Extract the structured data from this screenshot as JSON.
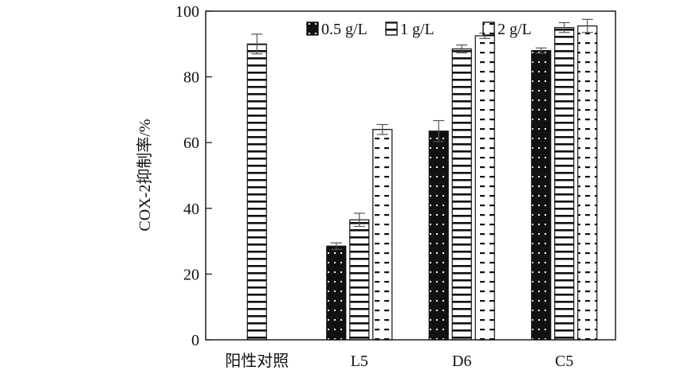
{
  "chart_data": {
    "type": "bar",
    "categories": [
      "阳性对照",
      "L5",
      "D6",
      "C5"
    ],
    "ylabel": "COX-2抑制率/%",
    "ylim": [
      0,
      100
    ],
    "yticks": [
      0,
      20,
      40,
      60,
      80,
      100
    ],
    "grid": false,
    "legend_position": "top",
    "series": [
      {
        "name": "0.5 g/L",
        "pattern": "dots-on-black",
        "values": [
          null,
          28.5,
          63.5,
          88.0
        ],
        "errors": [
          null,
          1.0,
          3.2,
          0.8
        ]
      },
      {
        "name": "1 g/L",
        "pattern": "horizontal-stripes",
        "values": [
          90.0,
          36.5,
          88.5,
          95.0
        ],
        "errors": [
          3.0,
          2.0,
          1.2,
          1.5
        ]
      },
      {
        "name": "2 g/L",
        "pattern": "dashes",
        "values": [
          null,
          64.0,
          92.5,
          95.5
        ],
        "errors": [
          null,
          1.5,
          0.8,
          2.0
        ]
      }
    ]
  }
}
